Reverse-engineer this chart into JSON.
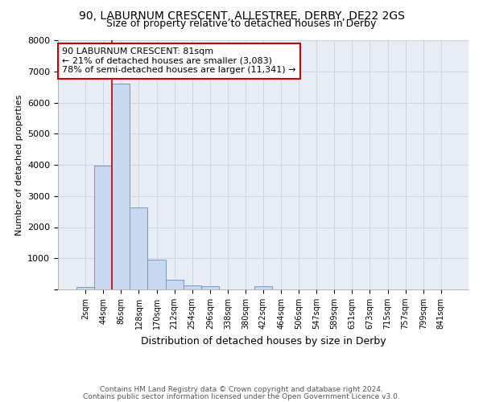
{
  "title1": "90, LABURNUM CRESCENT, ALLESTREE, DERBY, DE22 2GS",
  "title2": "Size of property relative to detached houses in Derby",
  "xlabel": "Distribution of detached houses by size in Derby",
  "ylabel": "Number of detached properties",
  "bar_labels": [
    "2sqm",
    "44sqm",
    "86sqm",
    "128sqm",
    "170sqm",
    "212sqm",
    "254sqm",
    "296sqm",
    "338sqm",
    "380sqm",
    "422sqm",
    "464sqm",
    "506sqm",
    "547sqm",
    "589sqm",
    "631sqm",
    "673sqm",
    "715sqm",
    "757sqm",
    "799sqm",
    "841sqm"
  ],
  "bar_values": [
    75,
    3980,
    6600,
    2620,
    960,
    320,
    130,
    105,
    0,
    0,
    105,
    0,
    0,
    0,
    0,
    0,
    0,
    0,
    0,
    0,
    0
  ],
  "bar_color": "#c8d8ee",
  "bar_edge_color": "#7799bb",
  "bar_edge_width": 0.7,
  "property_line_x": 2.0,
  "property_line_color": "#cc0000",
  "annotation_text": "90 LABURNUM CRESCENT: 81sqm\n← 21% of detached houses are smaller (3,083)\n78% of semi-detached houses are larger (11,341) →",
  "annotation_box_color": "#ffffff",
  "annotation_box_edge": "#cc0000",
  "ylim": [
    0,
    8000
  ],
  "yticks": [
    0,
    1000,
    2000,
    3000,
    4000,
    5000,
    6000,
    7000,
    8000
  ],
  "grid_color": "#c8d0dc",
  "footnote1": "Contains HM Land Registry data © Crown copyright and database right 2024.",
  "footnote2": "Contains public sector information licensed under the Open Government Licence v3.0.",
  "background_color": "#ffffff",
  "plot_bg_color": "#e8edf5"
}
